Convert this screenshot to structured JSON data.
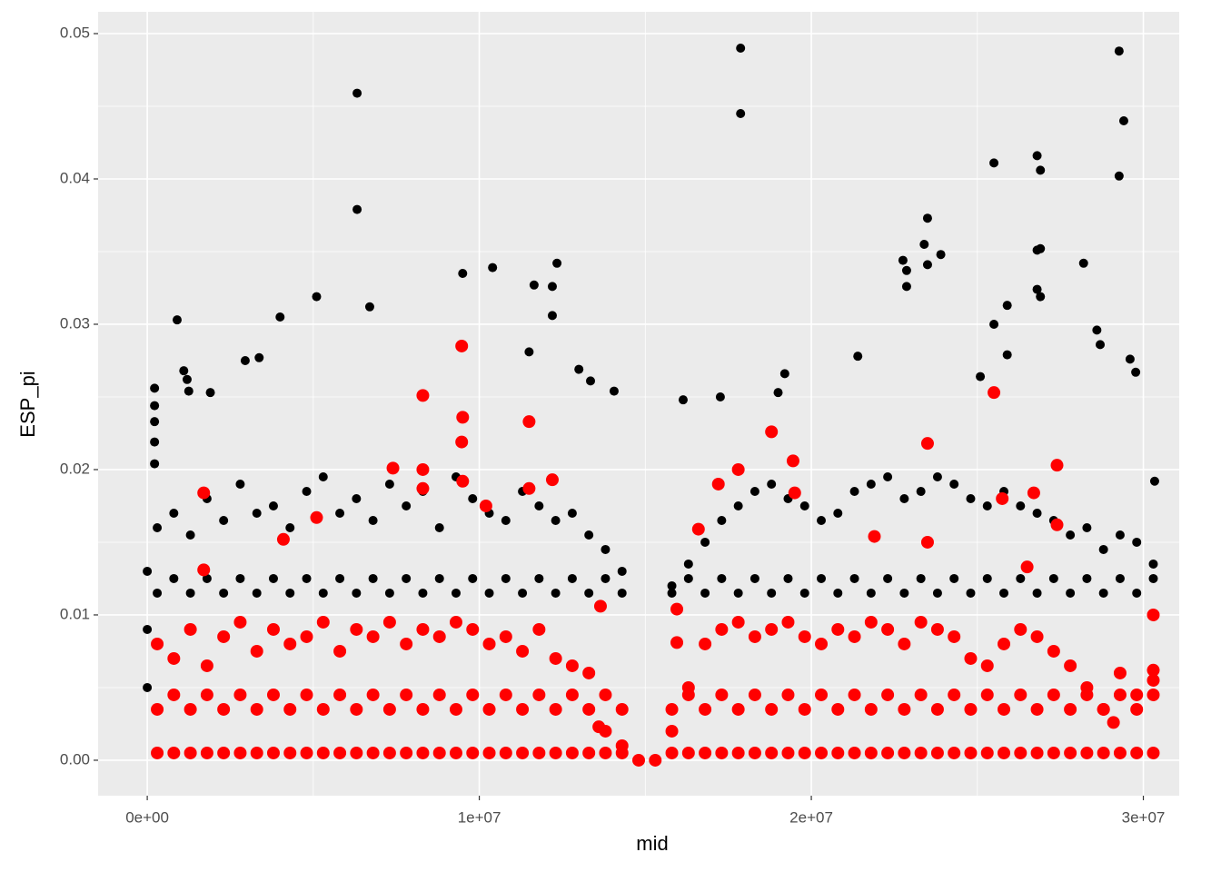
{
  "chart_data": {
    "type": "scatter",
    "x_label": "mid",
    "y_label": "ESP_pi",
    "xlim": [
      -1480000,
      31080000
    ],
    "ylim": [
      -0.00244,
      0.0515
    ],
    "xticks": [
      {
        "value": 0,
        "label": "0e+00"
      },
      {
        "value": 10000000,
        "label": "1e+07"
      },
      {
        "value": 20000000,
        "label": "2e+07"
      },
      {
        "value": 30000000,
        "label": "3e+07"
      }
    ],
    "yticks": [
      {
        "value": 0,
        "label": "0.00"
      },
      0.01,
      0.02,
      0.03,
      0.04,
      0.05
    ],
    "x_minor_breaks": [
      5000000,
      15000000,
      25000000
    ],
    "y_minor_breaks": [
      0.005,
      0.015,
      0.025,
      0.035,
      0.045
    ],
    "grid": true,
    "series": [
      {
        "color": "#000000",
        "x": [
          6320000,
          6320000,
          17870000,
          17870000,
          29270000,
          29410000,
          29270000,
          25500000,
          26800000,
          26900000,
          900000,
          5100000,
          9500000,
          10400000,
          11650000,
          12340000,
          12200000,
          12200000,
          6700000,
          4000000,
          22760000,
          22870000,
          22870000,
          23500000,
          23500000,
          23900000,
          23400000,
          26800000,
          26900000,
          26800000,
          26900000,
          28200000,
          25500000,
          25900000,
          25900000,
          28600000,
          28700000,
          21400000,
          11500000,
          13000000,
          2950000,
          3370000,
          1100000,
          1200000,
          1250000,
          1900000,
          220000,
          220000,
          220000,
          220000,
          220000,
          14060000,
          13350000,
          16140000,
          17260000,
          19200000,
          19000000,
          25090000,
          29600000,
          29770000,
          30340000,
          0,
          0,
          0
        ],
        "values": [
          0.0459,
          0.0379,
          0.049,
          0.0445,
          0.0488,
          0.044,
          0.0402,
          0.0411,
          0.0416,
          0.0406,
          0.0303,
          0.0319,
          0.0335,
          0.0339,
          0.0327,
          0.0342,
          0.0326,
          0.0306,
          0.0312,
          0.0305,
          0.0344,
          0.0337,
          0.0326,
          0.0373,
          0.0341,
          0.0348,
          0.0355,
          0.0351,
          0.0352,
          0.0324,
          0.0319,
          0.0342,
          0.03,
          0.0313,
          0.0279,
          0.0296,
          0.0286,
          0.0278,
          0.0281,
          0.0269,
          0.0275,
          0.0277,
          0.0268,
          0.0262,
          0.0254,
          0.0253,
          0.0256,
          0.0244,
          0.0233,
          0.0219,
          0.0204,
          0.0254,
          0.0261,
          0.0248,
          0.025,
          0.0266,
          0.0253,
          0.0264,
          0.0276,
          0.0267,
          0.0192,
          0.005,
          0.009,
          0.013
        ]
      },
      {
        "color": "#000000",
        "x": [
          300000,
          800000,
          1300000,
          1800000,
          2300000,
          2800000,
          3300000,
          3800000,
          4300000,
          4800000,
          5300000,
          5800000,
          6300000,
          6800000,
          7300000,
          7800000,
          8300000,
          8800000,
          9300000,
          9800000,
          10300000,
          10800000,
          11300000,
          11800000,
          12300000,
          12800000,
          13300000,
          13800000,
          14300000,
          15800000,
          16300000,
          16800000,
          17300000,
          17800000,
          18300000,
          18800000,
          19300000,
          19800000,
          20300000,
          20800000,
          21300000,
          21800000,
          22300000,
          22800000,
          23300000,
          23800000,
          24300000,
          24800000,
          25300000,
          25800000,
          26300000,
          26800000,
          27300000,
          27800000,
          28300000,
          28800000,
          29300000,
          29800000,
          30300000,
          300000,
          800000,
          1300000,
          1800000,
          2300000,
          2800000,
          3300000,
          3800000,
          4300000,
          4800000,
          5300000,
          5800000,
          6300000,
          6800000,
          7300000,
          7800000,
          8300000,
          8800000,
          9300000,
          9800000,
          10300000,
          10800000,
          11300000,
          11800000,
          12300000,
          12800000,
          13300000,
          13800000,
          14300000,
          15800000,
          16300000,
          16800000,
          17300000,
          17800000,
          18300000,
          18800000,
          19300000,
          19800000,
          20300000,
          20800000,
          21300000,
          21800000,
          22300000,
          22800000,
          23300000,
          23800000,
          24300000,
          24800000,
          25300000,
          25800000,
          26300000,
          26800000,
          27300000,
          27800000,
          28300000,
          28800000,
          29300000,
          29800000,
          30300000
        ],
        "values": [
          0.0115,
          0.0125,
          0.0115,
          0.0125,
          0.0115,
          0.0125,
          0.0115,
          0.0125,
          0.0115,
          0.0125,
          0.0115,
          0.0125,
          0.0115,
          0.0125,
          0.0115,
          0.0125,
          0.0115,
          0.0125,
          0.0115,
          0.0125,
          0.0115,
          0.0125,
          0.0115,
          0.0125,
          0.0115,
          0.0125,
          0.0115,
          0.0125,
          0.0115,
          0.0115,
          0.0125,
          0.0115,
          0.0125,
          0.0115,
          0.0125,
          0.0115,
          0.0125,
          0.0115,
          0.0125,
          0.0115,
          0.0125,
          0.0115,
          0.0125,
          0.0115,
          0.0125,
          0.0115,
          0.0125,
          0.0115,
          0.0125,
          0.0115,
          0.0125,
          0.0115,
          0.0125,
          0.0115,
          0.0125,
          0.0115,
          0.0125,
          0.0115,
          0.0125,
          0.016,
          0.017,
          0.0155,
          0.018,
          0.0165,
          0.019,
          0.017,
          0.0175,
          0.016,
          0.0185,
          0.0195,
          0.017,
          0.018,
          0.0165,
          0.019,
          0.0175,
          0.0185,
          0.016,
          0.0195,
          0.018,
          0.017,
          0.0165,
          0.0185,
          0.0175,
          0.0165,
          0.017,
          0.0155,
          0.0145,
          0.013,
          0.012,
          0.0135,
          0.015,
          0.0165,
          0.0175,
          0.0185,
          0.019,
          0.018,
          0.0175,
          0.0165,
          0.017,
          0.0185,
          0.019,
          0.0195,
          0.018,
          0.0185,
          0.0195,
          0.019,
          0.018,
          0.0175,
          0.0185,
          0.0175,
          0.017,
          0.0165,
          0.0155,
          0.016,
          0.0145,
          0.0155,
          0.015,
          0.0135
        ]
      },
      {
        "color": "#ff0000",
        "x": [
          300000,
          800000,
          1300000,
          1800000,
          2300000,
          2800000,
          3300000,
          3800000,
          4300000,
          4800000,
          5300000,
          5800000,
          6300000,
          6800000,
          7300000,
          7800000,
          8300000,
          8800000,
          9300000,
          9800000,
          10300000,
          10800000,
          11300000,
          11800000,
          12300000,
          12800000,
          13300000,
          13800000,
          14300000,
          15800000,
          16300000,
          16800000,
          17300000,
          17800000,
          18300000,
          18800000,
          19300000,
          19800000,
          20300000,
          20800000,
          21300000,
          21800000,
          22300000,
          22800000,
          23300000,
          23800000,
          24300000,
          24800000,
          25300000,
          25800000,
          26300000,
          26800000,
          27300000,
          27800000,
          28300000,
          28800000,
          29300000,
          29800000,
          30300000,
          300000,
          800000,
          1300000,
          1800000,
          2300000,
          2800000,
          3300000,
          3800000,
          4300000,
          4800000,
          5300000,
          5800000,
          6300000,
          6800000,
          7300000,
          7800000,
          8300000,
          8800000,
          9300000,
          9800000,
          10300000,
          10800000,
          11300000,
          11800000,
          12300000,
          12800000,
          13300000,
          13800000,
          14300000,
          15800000,
          16300000,
          16800000,
          17300000,
          17800000,
          18300000,
          18800000,
          19300000,
          19800000,
          20300000,
          20800000,
          21300000,
          21800000,
          22300000,
          22800000,
          23300000,
          23800000,
          24300000,
          24800000,
          25300000,
          25800000,
          26300000,
          26800000,
          27300000,
          27800000,
          28300000,
          28800000,
          29300000,
          29800000,
          30300000,
          300000,
          800000,
          1300000,
          1800000,
          2300000,
          2800000,
          3300000,
          3800000,
          4300000,
          4800000,
          5300000,
          5800000,
          6300000,
          6800000,
          7300000,
          7800000,
          8300000,
          8800000,
          9300000,
          9800000,
          10300000,
          10800000,
          11300000,
          11800000,
          12300000,
          12800000,
          13300000,
          13800000,
          14300000,
          15800000,
          16300000,
          16800000,
          17300000,
          17800000,
          18300000,
          18800000,
          19300000,
          19800000,
          20300000,
          20800000,
          21300000,
          21800000,
          22300000,
          22800000,
          23300000,
          23800000,
          24300000,
          24800000,
          25300000,
          25800000,
          26300000,
          26800000,
          27300000,
          27800000,
          28300000,
          28800000,
          29300000,
          29800000,
          30300000
        ],
        "values": [
          0.0005,
          0.0005,
          0.0005,
          0.0005,
          0.0005,
          0.0005,
          0.0005,
          0.0005,
          0.0005,
          0.0005,
          0.0005,
          0.0005,
          0.0005,
          0.0005,
          0.0005,
          0.0005,
          0.0005,
          0.0005,
          0.0005,
          0.0005,
          0.0005,
          0.0005,
          0.0005,
          0.0005,
          0.0005,
          0.0005,
          0.0005,
          0.0005,
          0.0005,
          0.0005,
          0.0005,
          0.0005,
          0.0005,
          0.0005,
          0.0005,
          0.0005,
          0.0005,
          0.0005,
          0.0005,
          0.0005,
          0.0005,
          0.0005,
          0.0005,
          0.0005,
          0.0005,
          0.0005,
          0.0005,
          0.0005,
          0.0005,
          0.0005,
          0.0005,
          0.0005,
          0.0005,
          0.0005,
          0.0005,
          0.0005,
          0.0005,
          0.0005,
          0.0005,
          0.0035,
          0.0045,
          0.0035,
          0.0045,
          0.0035,
          0.0045,
          0.0035,
          0.0045,
          0.0035,
          0.0045,
          0.0035,
          0.0045,
          0.0035,
          0.0045,
          0.0035,
          0.0045,
          0.0035,
          0.0045,
          0.0035,
          0.0045,
          0.0035,
          0.0045,
          0.0035,
          0.0045,
          0.0035,
          0.0045,
          0.0035,
          0.0045,
          0.0035,
          0.0035,
          0.0045,
          0.0035,
          0.0045,
          0.0035,
          0.0045,
          0.0035,
          0.0045,
          0.0035,
          0.0045,
          0.0035,
          0.0045,
          0.0035,
          0.0045,
          0.0035,
          0.0045,
          0.0035,
          0.0045,
          0.0035,
          0.0045,
          0.0035,
          0.0045,
          0.0035,
          0.0045,
          0.0035,
          0.0045,
          0.0035,
          0.0045,
          0.0035,
          0.0045,
          0.008,
          0.007,
          0.009,
          0.0065,
          0.0085,
          0.0095,
          0.0075,
          0.009,
          0.008,
          0.0085,
          0.0095,
          0.0075,
          0.009,
          0.0085,
          0.0095,
          0.008,
          0.009,
          0.0085,
          0.0095,
          0.009,
          0.008,
          0.0085,
          0.0075,
          0.009,
          0.007,
          0.0065,
          0.006,
          0.002,
          0.001,
          0.002,
          0.005,
          0.008,
          0.009,
          0.0095,
          0.0085,
          0.009,
          0.0095,
          0.0085,
          0.008,
          0.009,
          0.0085,
          0.0095,
          0.009,
          0.008,
          0.0095,
          0.009,
          0.0085,
          0.007,
          0.0065,
          0.008,
          0.009,
          0.0085,
          0.0075,
          0.0065,
          0.005,
          0.0035,
          0.006,
          0.0045,
          0.0055
        ]
      },
      {
        "color": "#ff0000",
        "x": [
          1700000,
          1700000,
          8300000,
          9470000,
          9500000,
          9470000,
          7400000,
          8300000,
          8300000,
          9500000,
          10200000,
          11500000,
          11500000,
          12200000,
          4100000,
          5100000,
          13650000,
          13600000,
          18800000,
          17800000,
          17200000,
          19450000,
          19500000,
          23500000,
          25500000,
          25750000,
          26700000,
          27400000,
          27400000,
          30300000,
          30300000,
          29100000,
          16600000,
          15950000,
          15950000,
          23500000,
          26500000,
          21900000,
          14800000,
          15300000
        ],
        "values": [
          0.0184,
          0.0131,
          0.0251,
          0.0285,
          0.0236,
          0.0219,
          0.0201,
          0.02,
          0.0187,
          0.0192,
          0.0175,
          0.0233,
          0.0187,
          0.0193,
          0.0152,
          0.0167,
          0.0106,
          0.0023,
          0.0226,
          0.02,
          0.019,
          0.0206,
          0.0184,
          0.0218,
          0.0253,
          0.018,
          0.0184,
          0.0203,
          0.0162,
          0.01,
          0.0062,
          0.0026,
          0.0159,
          0.0104,
          0.0081,
          0.015,
          0.0133,
          0.0154,
          0,
          0
        ]
      }
    ]
  }
}
